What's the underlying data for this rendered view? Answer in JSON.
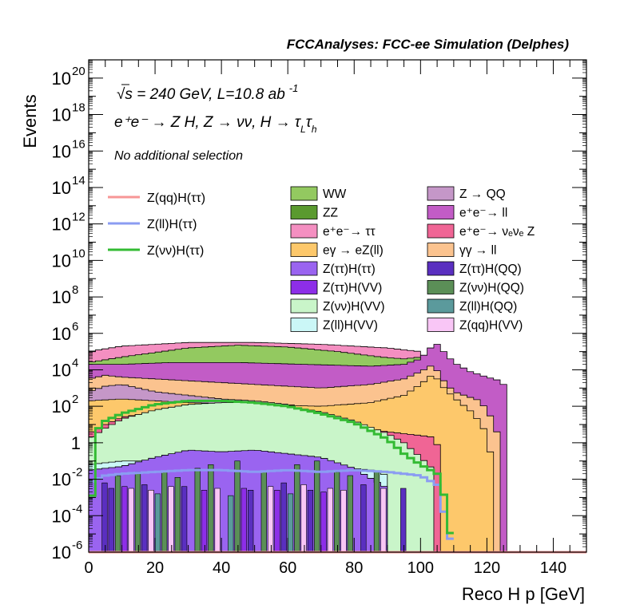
{
  "header": {
    "title": "FCCAnalyses: FCC-ee Simulation (Delphes)"
  },
  "annotations": {
    "line1_a": "√s = 240 GeV, L=10.8 ab",
    "line1_sup": "-1",
    "line2": "e⁺e⁻ → Z H, Z → νν, H → τ",
    "line2_sub1": "L",
    "line2_tau": "τ",
    "line2_sub2": "h",
    "line3": "No additional selection"
  },
  "chart_data": {
    "type": "area",
    "title": "FCCAnalyses: FCC-ee Simulation (Delphes)",
    "xlabel": "Reco H p [GeV]",
    "ylabel": "Events",
    "xlim": [
      0,
      150
    ],
    "ylim_exponent": [
      -6,
      21
    ],
    "log_y": true,
    "x_ticks": [
      "0",
      "20",
      "40",
      "60",
      "80",
      "100",
      "120",
      "140"
    ],
    "y_tick_labels": [
      {
        "exp": 20,
        "base": "10",
        "sup": "20"
      },
      {
        "exp": 18,
        "base": "10",
        "sup": "18"
      },
      {
        "exp": 16,
        "base": "10",
        "sup": "16"
      },
      {
        "exp": 14,
        "base": "10",
        "sup": "14"
      },
      {
        "exp": 12,
        "base": "10",
        "sup": "12"
      },
      {
        "exp": 10,
        "base": "10",
        "sup": "10"
      },
      {
        "exp": 8,
        "base": "10",
        "sup": "8"
      },
      {
        "exp": 6,
        "base": "10",
        "sup": "6"
      },
      {
        "exp": 4,
        "base": "10",
        "sup": "4"
      },
      {
        "exp": 2,
        "base": "10",
        "sup": "2"
      },
      {
        "exp": 0,
        "base": "1",
        "sup": ""
      },
      {
        "exp": -2,
        "base": "10",
        "sup": "-2"
      },
      {
        "exp": -4,
        "base": "10",
        "sup": "-4"
      },
      {
        "exp": -6,
        "base": "10",
        "sup": "-6"
      }
    ],
    "stack_layers": [
      {
        "name": "ee→ττ",
        "color": "#f48fc1",
        "top": [
          [
            0,
            5.0
          ],
          [
            10,
            5.3
          ],
          [
            30,
            5.5
          ],
          [
            50,
            5.5
          ],
          [
            70,
            5.4
          ],
          [
            90,
            5.2
          ],
          [
            100,
            5.0
          ]
        ]
      },
      {
        "name": "WW",
        "color": "#93c960",
        "top": [
          [
            0,
            4.4
          ],
          [
            10,
            4.7
          ],
          [
            30,
            5.2
          ],
          [
            45,
            5.35
          ],
          [
            60,
            5.25
          ],
          [
            75,
            5.0
          ],
          [
            88,
            4.7
          ],
          [
            95,
            4.6
          ],
          [
            100,
            4.7
          ]
        ]
      },
      {
        "name": "ZZ / ee→ll",
        "color": "#c25cc6",
        "top": [
          [
            0,
            4.3
          ],
          [
            10,
            4.3
          ],
          [
            25,
            4.4
          ],
          [
            45,
            4.4
          ],
          [
            65,
            4.3
          ],
          [
            85,
            4.2
          ],
          [
            95,
            4.3
          ],
          [
            100,
            4.6
          ],
          [
            103,
            5.2
          ],
          [
            104,
            5.6
          ],
          [
            106,
            5.2
          ],
          [
            110,
            4.4
          ],
          [
            115,
            3.9
          ],
          [
            120,
            3.6
          ],
          [
            124,
            3.4
          ],
          [
            126,
            3.0
          ]
        ]
      },
      {
        "name": "γγ→ll",
        "color": "#fbc38f",
        "top": [
          [
            0,
            3.5
          ],
          [
            5,
            3.7
          ],
          [
            10,
            3.6
          ],
          [
            30,
            3.4
          ],
          [
            50,
            3.2
          ],
          [
            70,
            3.0
          ],
          [
            85,
            3.2
          ],
          [
            95,
            3.5
          ],
          [
            100,
            3.9
          ],
          [
            104,
            4.3
          ],
          [
            106,
            3.6
          ],
          [
            110,
            2.8
          ],
          [
            118,
            2.3
          ],
          [
            122,
            1.2
          ],
          [
            124,
            0
          ]
        ]
      },
      {
        "name": "Z→QQ",
        "color": "#c597c8",
        "top": [
          [
            0,
            2.8
          ],
          [
            5,
            3.1
          ],
          [
            10,
            3.2
          ],
          [
            20,
            2.8
          ],
          [
            30,
            2.6
          ],
          [
            40,
            2.4
          ],
          [
            50,
            2.3
          ],
          [
            60,
            2.1
          ],
          [
            70,
            1.8
          ],
          [
            80,
            1.5
          ],
          [
            90,
            1.2
          ],
          [
            100,
            0.9
          ]
        ]
      },
      {
        "name": "eγ→eZ(ll)",
        "color": "#fdc86b",
        "top": [
          [
            0,
            2.3
          ],
          [
            10,
            2.4
          ],
          [
            30,
            2.2
          ],
          [
            50,
            2.1
          ],
          [
            70,
            2.0
          ],
          [
            85,
            2.2
          ],
          [
            95,
            2.6
          ],
          [
            100,
            3.2
          ],
          [
            104,
            3.8
          ],
          [
            106,
            3.2
          ],
          [
            110,
            2.5
          ],
          [
            116,
            1.6
          ],
          [
            120,
            0.5
          ],
          [
            122,
            -1.5
          ]
        ]
      },
      {
        "name": "e⁺e⁻→νₑνₑZ",
        "color": "#f06595",
        "top": [
          [
            0,
            0.5
          ],
          [
            5,
            1.0
          ],
          [
            10,
            1.4
          ],
          [
            20,
            1.7
          ],
          [
            30,
            1.8
          ],
          [
            40,
            1.8
          ],
          [
            50,
            1.75
          ],
          [
            60,
            1.6
          ],
          [
            70,
            1.3
          ],
          [
            80,
            0.9
          ],
          [
            90,
            0.6
          ],
          [
            100,
            0.4
          ],
          [
            104,
            0.3
          ],
          [
            106,
            -0.5
          ]
        ]
      },
      {
        "name": "Z(νν)H(VV)",
        "color": "#c9f5c9",
        "top": [
          [
            0,
            0.2
          ],
          [
            5,
            0.8
          ],
          [
            10,
            1.3
          ],
          [
            20,
            1.8
          ],
          [
            30,
            2.1
          ],
          [
            40,
            2.2
          ],
          [
            50,
            2.2
          ],
          [
            60,
            2.0
          ],
          [
            70,
            1.7
          ],
          [
            80,
            1.2
          ],
          [
            90,
            0.5
          ],
          [
            95,
            0.0
          ],
          [
            100,
            -0.8
          ],
          [
            104,
            -1.5
          ],
          [
            105,
            -6
          ]
        ]
      },
      {
        "name": "Z(ll)H(VV)",
        "color": "#cbf7f7",
        "top": [
          [
            0,
            -1.2
          ],
          [
            10,
            -1.0
          ],
          [
            30,
            -1.0
          ],
          [
            50,
            -1.1
          ],
          [
            70,
            -1.2
          ],
          [
            85,
            -1.5
          ],
          [
            90,
            -1.8
          ],
          [
            91,
            -6
          ]
        ]
      },
      {
        "name": "Z(ττ)H(ττ)",
        "color": "#9a64f0",
        "top": [
          [
            0,
            -1.5
          ],
          [
            10,
            -1.3
          ],
          [
            20,
            -0.8
          ],
          [
            30,
            -0.4
          ],
          [
            40,
            -0.5
          ],
          [
            50,
            -0.4
          ],
          [
            60,
            -0.6
          ],
          [
            70,
            -0.8
          ],
          [
            80,
            -1.4
          ],
          [
            90,
            -2.5
          ]
        ]
      }
    ],
    "overlay_series": [
      {
        "name": "Z(qq)H(ττ)",
        "color": "#f79696",
        "points": [
          [
            0,
            -6
          ],
          [
            150,
            -6
          ]
        ]
      },
      {
        "name": "Z(ll)H(ττ)",
        "color": "#8b9cf2",
        "points": [
          [
            0,
            -2.2
          ],
          [
            5,
            -1.8
          ],
          [
            10,
            -1.7
          ],
          [
            20,
            -1.6
          ],
          [
            30,
            -1.5
          ],
          [
            40,
            -1.5
          ],
          [
            50,
            -1.6
          ],
          [
            60,
            -1.5
          ],
          [
            70,
            -1.6
          ],
          [
            80,
            -1.5
          ],
          [
            90,
            -1.6
          ],
          [
            100,
            -1.8
          ],
          [
            105,
            -2.3
          ],
          [
            110,
            -6
          ]
        ]
      },
      {
        "name": "Z(νν)H(ττ)",
        "color": "#33bb33",
        "points": [
          [
            0,
            -6
          ],
          [
            2,
            0.2
          ],
          [
            3,
            0.8
          ],
          [
            5,
            1.2
          ],
          [
            10,
            1.6
          ],
          [
            20,
            2.1
          ],
          [
            30,
            2.3
          ],
          [
            40,
            2.3
          ],
          [
            50,
            2.2
          ],
          [
            60,
            2.0
          ],
          [
            70,
            1.6
          ],
          [
            80,
            1.1
          ],
          [
            90,
            0.2
          ],
          [
            95,
            -0.6
          ],
          [
            100,
            -1.2
          ],
          [
            104,
            -1.6
          ],
          [
            106,
            -1.8
          ],
          [
            110,
            -6
          ]
        ]
      }
    ],
    "spike_series": [
      {
        "name": "Z(νν)H(QQ)",
        "color": "#5b8f57",
        "bars": [
          [
            8,
            -1.8
          ],
          [
            14,
            -1.6
          ],
          [
            22,
            -1.6
          ],
          [
            26,
            -1.9
          ],
          [
            32,
            -1.4
          ],
          [
            36,
            -1.2
          ],
          [
            44,
            -1.0
          ],
          [
            52,
            -1.6
          ],
          [
            62,
            -1.2
          ],
          [
            68,
            -1.0
          ],
          [
            74,
            -1.6
          ],
          [
            78,
            -1.8
          ],
          [
            86,
            -1.6
          ]
        ]
      },
      {
        "name": "Z(ττ)H(QQ)",
        "color": "#5a2fc0",
        "bars": [
          [
            4,
            -2.2
          ],
          [
            6,
            -2.5
          ],
          [
            16,
            -2.3
          ],
          [
            28,
            -2.4
          ],
          [
            48,
            -2.6
          ],
          [
            58,
            -2.2
          ],
          [
            66,
            -2.6
          ],
          [
            82,
            -2.3
          ],
          [
            94,
            -2.5
          ]
        ]
      },
      {
        "name": "Z(qq)H(VV)",
        "color": "#f9c6f6",
        "bars": [
          [
            12,
            -2.5
          ],
          [
            18,
            -2.6
          ],
          [
            24,
            -2.4
          ],
          [
            38,
            -2.5
          ],
          [
            54,
            -2.4
          ],
          [
            64,
            -2.3
          ],
          [
            72,
            -2.5
          ],
          [
            76,
            -2.6
          ],
          [
            88,
            -2.5
          ]
        ]
      },
      {
        "name": "Z(ττ)H(VV)",
        "color": "#8d2ee8",
        "bars": [
          [
            10,
            -2.4
          ],
          [
            34,
            -2.6
          ],
          [
            46,
            -2.5
          ],
          [
            56,
            -2.6
          ],
          [
            70,
            -2.7
          ]
        ]
      },
      {
        "name": "Z(ll)H(QQ)",
        "color": "#5b9a9c",
        "bars": [
          [
            20,
            -2.8
          ],
          [
            42,
            -2.9
          ],
          [
            60,
            -2.8
          ]
        ]
      }
    ]
  },
  "legend": {
    "lines": [
      {
        "label": "Z(qq)H(ττ)",
        "color": "#f79696"
      },
      {
        "label": "Z(ll)H(ττ)",
        "color": "#8b9cf2"
      },
      {
        "label": "Z(νν)H(ττ)",
        "color": "#33bb33"
      }
    ],
    "col1": [
      {
        "label": "WW",
        "color": "#93c960"
      },
      {
        "label": "ZZ",
        "color": "#5a9a2f"
      },
      {
        "label": "e⁺e⁻→ ττ",
        "color": "#f48fc1"
      },
      {
        "label": "eγ → eZ(ll)",
        "color": "#fdc86b"
      },
      {
        "label": "Z(ττ)H(ττ)",
        "color": "#9a64f0"
      },
      {
        "label": "Z(ττ)H(VV)",
        "color": "#8d2ee8"
      },
      {
        "label": "Z(νν)H(VV)",
        "color": "#c9f5c9"
      },
      {
        "label": "Z(ll)H(VV)",
        "color": "#cbf7f7"
      }
    ],
    "col2": [
      {
        "label": "Z → QQ",
        "color": "#c597c8"
      },
      {
        "label": "e⁺e⁻→ ll",
        "color": "#c25cc6"
      },
      {
        "label": "e⁺e⁻→ νₑνₑ Z",
        "color": "#f06595"
      },
      {
        "label": "γγ → ll",
        "color": "#fbc38f"
      },
      {
        "label": "Z(ττ)H(QQ)",
        "color": "#5a2fc0"
      },
      {
        "label": "Z(νν)H(QQ)",
        "color": "#5b8f57"
      },
      {
        "label": "Z(ll)H(QQ)",
        "color": "#5b9a9c"
      },
      {
        "label": "Z(qq)H(VV)",
        "color": "#f9c6f6"
      }
    ]
  }
}
